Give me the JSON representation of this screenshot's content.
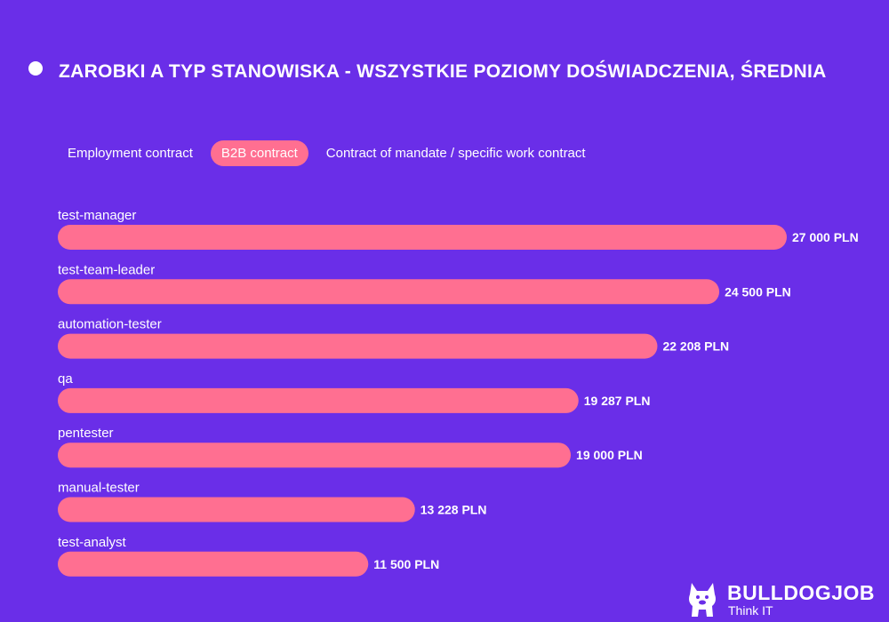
{
  "chart_data": {
    "type": "bar",
    "orientation": "horizontal",
    "title": "ZAROBKI A TYP STANOWISKA - WSZYSTKIE POZIOMY DOŚWIADCZENIA, ŚREDNIA",
    "categories": [
      "test-manager",
      "test-team-leader",
      "automation-tester",
      "qa",
      "pentester",
      "manual-tester",
      "test-analyst"
    ],
    "values": [
      27000,
      24500,
      22208,
      19287,
      19000,
      13228,
      11500
    ],
    "value_labels": [
      "27 000 PLN",
      "24 500 PLN",
      "22 208 PLN",
      "19 287 PLN",
      "19 000 PLN",
      "13 228 PLN",
      "11 500 PLN"
    ],
    "unit": "PLN",
    "xlim": [
      0,
      27000
    ],
    "grid": false,
    "bar_color": "#ff6f91"
  },
  "tabs": [
    {
      "label": "Employment contract",
      "active": false
    },
    {
      "label": "B2B contract",
      "active": true
    },
    {
      "label": "Contract of mandate / specific work contract",
      "active": false
    }
  ],
  "branding": {
    "logo_text": "BULLDOGJOB",
    "tagline": "Think IT",
    "logo_icon": "bulldog-icon"
  },
  "colors": {
    "background": "#6a2ee8",
    "accent": "#ff6f91",
    "text": "#ffffff"
  }
}
